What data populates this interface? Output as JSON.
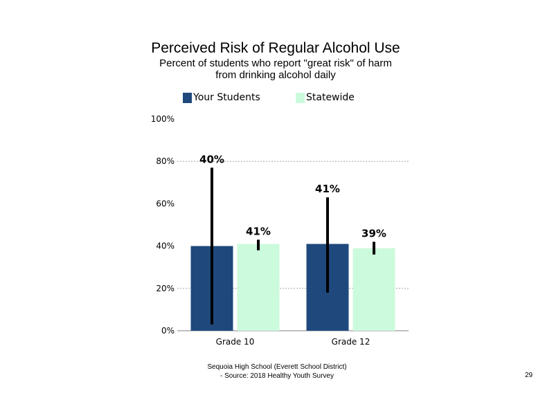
{
  "title": "Perceived Risk of Regular Alcohol Use",
  "subtitle_lines": [
    "Percent of students who report \"great risk\" of harm",
    "from drinking alcohol daily"
  ],
  "footer": {
    "line1": "Sequoia High School (Everett School District)",
    "line2": "- Source: 2018 Healthy Youth Survey"
  },
  "page_number": "29",
  "colors": {
    "your_students": "#1f497d",
    "statewide": "#ccfadc",
    "error_bar": "#000000",
    "gridline": "#a6a6a6",
    "axis": "#7f7f7f"
  },
  "chart_data": {
    "type": "bar",
    "categories": [
      "Grade 10",
      "Grade 12"
    ],
    "series": [
      {
        "name": "Your Students",
        "values": [
          40,
          41
        ],
        "labels": [
          "40%",
          "41%"
        ],
        "error_low": [
          3,
          18
        ],
        "error_high": [
          77,
          63
        ]
      },
      {
        "name": "Statewide",
        "values": [
          41,
          39
        ],
        "labels": [
          "41%",
          "39%"
        ],
        "error_low": [
          38,
          36
        ],
        "error_high": [
          43,
          42
        ]
      }
    ],
    "ylim": [
      0,
      100
    ],
    "yticks": [
      0,
      20,
      40,
      60,
      80,
      100
    ],
    "ytick_labels": [
      "0%",
      "20%",
      "40%",
      "60%",
      "80%",
      "100%"
    ],
    "grid": "dashed horizontal at 20% and 80%",
    "legend_position": "top"
  }
}
